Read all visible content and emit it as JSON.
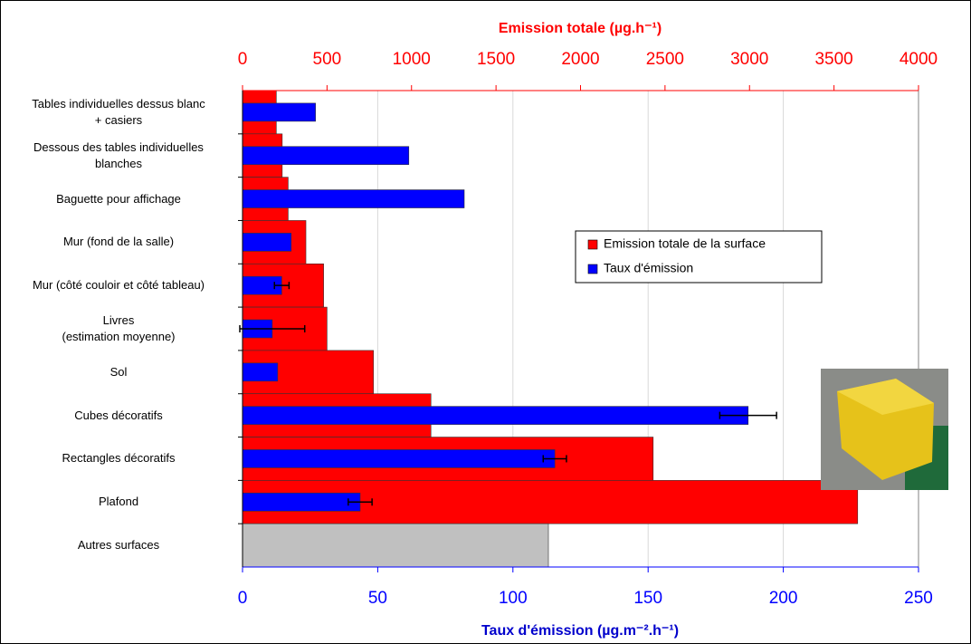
{
  "chart_data": {
    "type": "bar",
    "orientation": "horizontal",
    "title_top": "Emission totale (µg.h⁻¹)",
    "xlabel": "Taux d'émission (µg.m⁻².h⁻¹)",
    "categories": [
      "Tables individuelles dessus blanc\n+ casiers",
      "Dessous des tables individuelles\nblanches",
      "Baguette pour affichage",
      "Mur (fond de la salle)",
      "Mur (côté couloir et côté tableau)",
      "Livres\n(estimation moyenne)",
      "Sol",
      "Cubes décoratifs",
      "Rectangles décoratifs",
      "Plafond",
      "Autres surfaces"
    ],
    "series": [
      {
        "name": "Emission totale de la surface",
        "color": "#ff0000",
        "axis": "x2",
        "colors": [
          "#ff0000",
          "#ff0000",
          "#ff0000",
          "#ff0000",
          "#ff0000",
          "#ff0000",
          "#ff0000",
          "#ff0000",
          "#ff0000",
          "#ff0000",
          "#c0c0c0"
        ],
        "values": [
          200,
          235,
          270,
          375,
          480,
          500,
          775,
          1115,
          2430,
          3640,
          1810
        ]
      },
      {
        "name": "Taux d'émission",
        "color": "#0000ff",
        "values": [
          27,
          61.5,
          82,
          18,
          14.5,
          11,
          13,
          187,
          115.5,
          43.5,
          null
        ],
        "errors": [
          null,
          null,
          null,
          null,
          2.7,
          12,
          null,
          10.5,
          4.3,
          4.4,
          null
        ]
      }
    ],
    "xlim": [
      0,
      250
    ],
    "xticks": [
      0,
      50,
      100,
      150,
      200,
      250
    ],
    "x2lim": [
      0,
      4000
    ],
    "x2ticks": [
      0,
      500,
      1000,
      1500,
      2000,
      2500,
      3000,
      3500,
      4000
    ],
    "grid": true,
    "legend": "center-right"
  }
}
